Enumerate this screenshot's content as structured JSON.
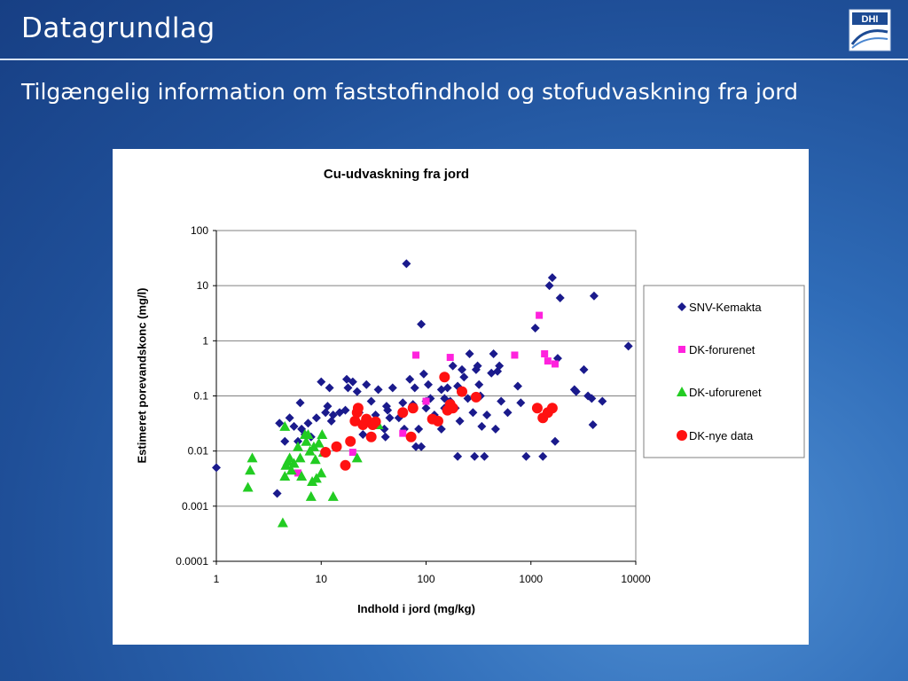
{
  "slide": {
    "title": "Datagrundlag",
    "subtitle": "Tilgængelig information om faststofindhold og stofudvaskning fra jord",
    "logo_text": "DHI"
  },
  "colors": {
    "background": "#2a62ae",
    "title_text": "#ffffff",
    "snv": "#1a1a8c",
    "dk_forurenet": "#ff22dd",
    "dk_uforurenet": "#22cc22",
    "dk_nye": "#ff1111"
  },
  "chart_data": {
    "type": "scatter",
    "title": "Cu-udvaskning fra jord",
    "xlabel": "Indhold i jord (mg/kg)",
    "ylabel": "Estimeret porevandskonc (mg/l)",
    "x_scale": "log",
    "y_scale": "log",
    "xlim": [
      1,
      10000
    ],
    "ylim": [
      0.0001,
      100
    ],
    "x_ticks": [
      "1",
      "10",
      "100",
      "1000",
      "10000"
    ],
    "y_ticks": [
      "100",
      "10",
      "1",
      "0.1",
      "0.01",
      "0.001",
      "0.0001"
    ],
    "grid": "horizontal",
    "legend_position": "right",
    "series": [
      {
        "name": "SNV-Kemakta",
        "marker": "diamond",
        "points": [
          [
            1.0,
            0.005
          ],
          [
            3.8,
            0.0017
          ],
          [
            4,
            0.032
          ],
          [
            4.5,
            0.015
          ],
          [
            5,
            0.04
          ],
          [
            5.5,
            0.028
          ],
          [
            6,
            0.015
          ],
          [
            6.3,
            0.075
          ],
          [
            6.5,
            0.025
          ],
          [
            7,
            0.02
          ],
          [
            7.5,
            0.032
          ],
          [
            8,
            0.018
          ],
          [
            9,
            0.04
          ],
          [
            10,
            0.18
          ],
          [
            11,
            0.05
          ],
          [
            11.5,
            0.065
          ],
          [
            12,
            0.14
          ],
          [
            12.5,
            0.035
          ],
          [
            13,
            0.045
          ],
          [
            15,
            0.05
          ],
          [
            17,
            0.055
          ],
          [
            17.5,
            0.2
          ],
          [
            18,
            0.14
          ],
          [
            20,
            0.18
          ],
          [
            21,
            0.035
          ],
          [
            22,
            0.12
          ],
          [
            23,
            0.05
          ],
          [
            25,
            0.02
          ],
          [
            27,
            0.16
          ],
          [
            30,
            0.08
          ],
          [
            33,
            0.045
          ],
          [
            35,
            0.13
          ],
          [
            40,
            0.025
          ],
          [
            41,
            0.018
          ],
          [
            42,
            0.065
          ],
          [
            43,
            0.055
          ],
          [
            45,
            0.04
          ],
          [
            48,
            0.14
          ],
          [
            55,
            0.04
          ],
          [
            60,
            0.075
          ],
          [
            62,
            0.025
          ],
          [
            65,
            25
          ],
          [
            70,
            0.2
          ],
          [
            75,
            0.07
          ],
          [
            78,
            0.14
          ],
          [
            80,
            0.012
          ],
          [
            85,
            0.025
          ],
          [
            90,
            0.012
          ],
          [
            90,
            2
          ],
          [
            95,
            0.25
          ],
          [
            100,
            0.08
          ],
          [
            100,
            0.06
          ],
          [
            105,
            0.16
          ],
          [
            110,
            0.09
          ],
          [
            120,
            0.045
          ],
          [
            130,
            0.035
          ],
          [
            140,
            0.025
          ],
          [
            140,
            0.13
          ],
          [
            150,
            0.06
          ],
          [
            150,
            0.09
          ],
          [
            160,
            0.14
          ],
          [
            170,
            0.08
          ],
          [
            180,
            0.35
          ],
          [
            190,
            0.06
          ],
          [
            200,
            0.15
          ],
          [
            200,
            0.008
          ],
          [
            210,
            0.035
          ],
          [
            220,
            0.3
          ],
          [
            230,
            0.22
          ],
          [
            250,
            0.09
          ],
          [
            260,
            0.58
          ],
          [
            280,
            0.05
          ],
          [
            290,
            0.008
          ],
          [
            300,
            0.3
          ],
          [
            310,
            0.35
          ],
          [
            320,
            0.16
          ],
          [
            330,
            0.1
          ],
          [
            340,
            0.028
          ],
          [
            360,
            0.008
          ],
          [
            380,
            0.045
          ],
          [
            420,
            0.26
          ],
          [
            440,
            0.58
          ],
          [
            460,
            0.025
          ],
          [
            480,
            0.28
          ],
          [
            500,
            0.35
          ],
          [
            520,
            0.08
          ],
          [
            600,
            0.05
          ],
          [
            750,
            0.15
          ],
          [
            800,
            0.075
          ],
          [
            900,
            0.008
          ],
          [
            1100,
            1.7
          ],
          [
            1300,
            0.008
          ],
          [
            1500,
            10
          ],
          [
            1600,
            14
          ],
          [
            1700,
            0.015
          ],
          [
            1800,
            0.48
          ],
          [
            1900,
            6
          ],
          [
            2600,
            0.13
          ],
          [
            2700,
            0.12
          ],
          [
            3200,
            0.3
          ],
          [
            3500,
            0.1
          ],
          [
            3800,
            0.09
          ],
          [
            3900,
            0.03
          ],
          [
            4000,
            6.5
          ],
          [
            4800,
            0.08
          ],
          [
            8500,
            0.8
          ]
        ]
      },
      {
        "name": "DK-forurenet",
        "marker": "square",
        "points": [
          [
            6,
            0.004
          ],
          [
            20,
            0.0095
          ],
          [
            60,
            0.021
          ],
          [
            80,
            0.55
          ],
          [
            100,
            0.08
          ],
          [
            170,
            0.5
          ],
          [
            700,
            0.55
          ],
          [
            1200,
            2.9
          ],
          [
            1350,
            0.58
          ],
          [
            1450,
            0.43
          ],
          [
            1700,
            0.38
          ]
        ]
      },
      {
        "name": "DK-uforurenet",
        "marker": "triangle",
        "points": [
          [
            2,
            0.0022
          ],
          [
            2.1,
            0.0045
          ],
          [
            2.2,
            0.0075
          ],
          [
            4.3,
            0.0005
          ],
          [
            4.5,
            0.0035
          ],
          [
            4.5,
            0.028
          ],
          [
            4.6,
            0.0055
          ],
          [
            4.8,
            0.0065
          ],
          [
            5,
            0.0075
          ],
          [
            5.2,
            0.0045
          ],
          [
            5.5,
            0.006
          ],
          [
            6,
            0.012
          ],
          [
            6.3,
            0.0075
          ],
          [
            6.5,
            0.0035
          ],
          [
            7,
            0.02
          ],
          [
            7.2,
            0.015
          ],
          [
            7.5,
            0.02
          ],
          [
            7.8,
            0.01
          ],
          [
            8,
            0.0015
          ],
          [
            8.2,
            0.0028
          ],
          [
            8.5,
            0.012
          ],
          [
            8.8,
            0.007
          ],
          [
            9,
            0.0032
          ],
          [
            9.5,
            0.014
          ],
          [
            10,
            0.004
          ],
          [
            10.2,
            0.02
          ],
          [
            10.5,
            0.0095
          ],
          [
            13,
            0.0015
          ],
          [
            22,
            0.0075
          ],
          [
            35,
            0.03
          ]
        ]
      },
      {
        "name": "DK-nye data",
        "marker": "circle",
        "points": [
          [
            11,
            0.0095
          ],
          [
            14,
            0.012
          ],
          [
            17,
            0.0055
          ],
          [
            19,
            0.015
          ],
          [
            21,
            0.035
          ],
          [
            22,
            0.05
          ],
          [
            22.5,
            0.06
          ],
          [
            25,
            0.03
          ],
          [
            27,
            0.038
          ],
          [
            30,
            0.018
          ],
          [
            31,
            0.03
          ],
          [
            33,
            0.034
          ],
          [
            60,
            0.05
          ],
          [
            72,
            0.018
          ],
          [
            75,
            0.06
          ],
          [
            115,
            0.038
          ],
          [
            130,
            0.035
          ],
          [
            150,
            0.22
          ],
          [
            160,
            0.055
          ],
          [
            170,
            0.07
          ],
          [
            180,
            0.06
          ],
          [
            220,
            0.12
          ],
          [
            300,
            0.095
          ],
          [
            1150,
            0.06
          ],
          [
            1300,
            0.04
          ],
          [
            1450,
            0.05
          ],
          [
            1600,
            0.06
          ]
        ]
      }
    ]
  }
}
